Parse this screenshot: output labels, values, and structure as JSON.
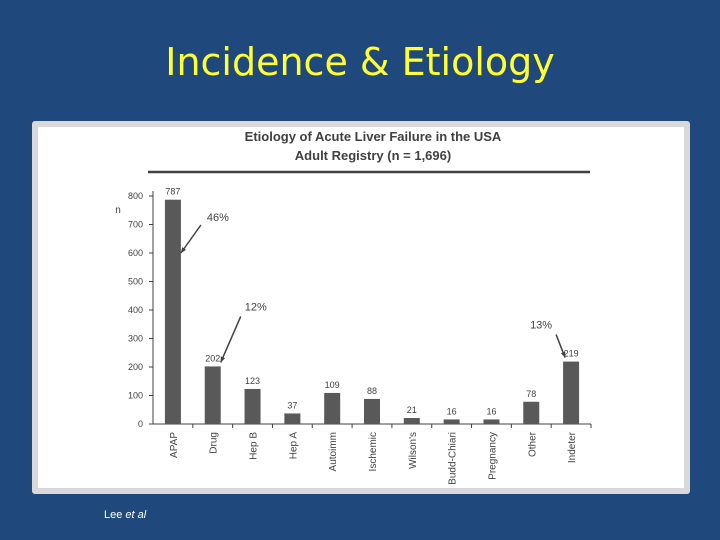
{
  "slide": {
    "title": "Incidence & Etiology",
    "citation_prefix": "Lee ",
    "citation_italic": "et al"
  },
  "chart_data": {
    "type": "bar",
    "title": "Etiology of Acute Liver Failure in the USA",
    "subtitle": "Adult Registry (n = 1,696)",
    "ylabel": "n",
    "xlabel": "",
    "ylim": [
      0,
      800
    ],
    "yticks": [
      0,
      100,
      200,
      300,
      400,
      500,
      600,
      700,
      800
    ],
    "categories": [
      "APAP",
      "Drug",
      "Hep B",
      "Hep A",
      "Autoimm",
      "Ischemic",
      "Wilson's",
      "Budd-Chiari",
      "Pregnancy",
      "Other",
      "Indeter"
    ],
    "values": [
      787,
      202,
      123,
      37,
      109,
      88,
      21,
      16,
      16,
      78,
      219
    ],
    "annotations": [
      {
        "text": "46%",
        "category": "APAP"
      },
      {
        "text": "12%",
        "category": "Drug"
      },
      {
        "text": "13%",
        "category": "Indeter"
      }
    ],
    "bar_color": "#595959",
    "grid": false,
    "legend": "none"
  }
}
